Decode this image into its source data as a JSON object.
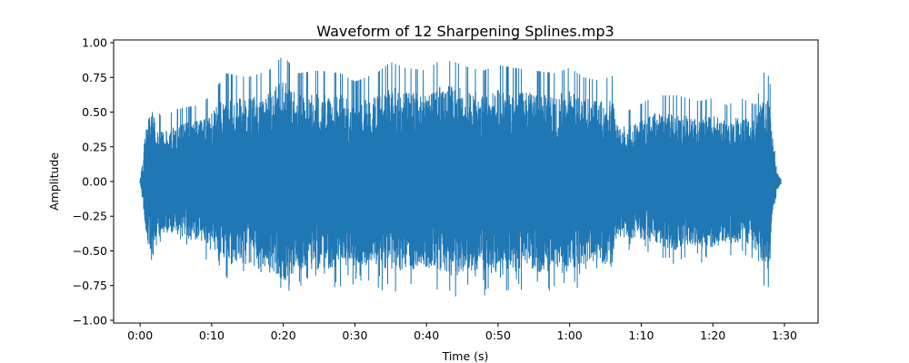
{
  "chart_data": {
    "type": "line",
    "title": "Waveform of 12 Sharpening Splines.mp3",
    "xlabel": "Time (s)",
    "ylabel": "Amplitude",
    "xlim": [
      -3.7,
      94.7
    ],
    "ylim": [
      -1.02,
      1.02
    ],
    "x_ticks": [
      {
        "value": 0,
        "label": "0:00"
      },
      {
        "value": 10,
        "label": "0:10"
      },
      {
        "value": 20,
        "label": "0:20"
      },
      {
        "value": 30,
        "label": "0:30"
      },
      {
        "value": 40,
        "label": "0:40"
      },
      {
        "value": 50,
        "label": "0:50"
      },
      {
        "value": 60,
        "label": "1:00"
      },
      {
        "value": 70,
        "label": "1:10"
      },
      {
        "value": 80,
        "label": "1:20"
      },
      {
        "value": 90,
        "label": "1:30"
      }
    ],
    "y_ticks": [
      {
        "value": 1.0,
        "label": "1.00"
      },
      {
        "value": 0.75,
        "label": "0.75"
      },
      {
        "value": 0.5,
        "label": "0.50"
      },
      {
        "value": 0.25,
        "label": "0.25"
      },
      {
        "value": 0.0,
        "label": "0.00"
      },
      {
        "value": -0.25,
        "label": "−0.25"
      },
      {
        "value": -0.5,
        "label": "−0.50"
      },
      {
        "value": -0.75,
        "label": "−0.75"
      },
      {
        "value": -1.0,
        "label": "−1.00"
      }
    ],
    "grid": false,
    "series": [
      {
        "color": "#1f77b4",
        "envelope": {
          "time": [
            0,
            0.4,
            0.6,
            1.0,
            1.5,
            3,
            5,
            8,
            10,
            12,
            15,
            18,
            20,
            22,
            25,
            28,
            30,
            33,
            35,
            37,
            40,
            42,
            44,
            46,
            48,
            50,
            52,
            55,
            58,
            60,
            62,
            64,
            66,
            66.4,
            67,
            70,
            72,
            75,
            78,
            80,
            82,
            84,
            86,
            87,
            87.6,
            88,
            88.5,
            89,
            89.5
          ],
          "max": [
            0.02,
            0.15,
            0.38,
            0.55,
            0.66,
            0.45,
            0.52,
            0.55,
            0.62,
            0.78,
            0.75,
            0.8,
            0.91,
            0.78,
            0.8,
            0.78,
            0.72,
            0.78,
            0.86,
            0.82,
            0.8,
            0.88,
            0.86,
            0.82,
            0.8,
            0.84,
            0.82,
            0.8,
            0.78,
            0.82,
            0.75,
            0.73,
            0.76,
            0.58,
            0.48,
            0.56,
            0.62,
            0.62,
            0.58,
            0.6,
            0.55,
            0.6,
            0.55,
            0.78,
            0.8,
            0.7,
            0.28,
            0.08,
            0.02
          ],
          "min": [
            -0.02,
            -0.15,
            -0.38,
            -0.55,
            -0.72,
            -0.5,
            -0.45,
            -0.52,
            -0.62,
            -0.7,
            -0.75,
            -0.82,
            -0.92,
            -0.78,
            -0.8,
            -0.78,
            -0.75,
            -0.76,
            -0.82,
            -0.8,
            -0.8,
            -0.82,
            -0.86,
            -0.8,
            -0.82,
            -0.84,
            -0.78,
            -0.8,
            -0.78,
            -0.82,
            -0.72,
            -0.72,
            -0.78,
            -0.6,
            -0.5,
            -0.52,
            -0.58,
            -0.62,
            -0.58,
            -0.6,
            -0.55,
            -0.58,
            -0.55,
            -0.75,
            -0.8,
            -0.72,
            -0.28,
            -0.08,
            -0.02
          ]
        }
      }
    ]
  }
}
